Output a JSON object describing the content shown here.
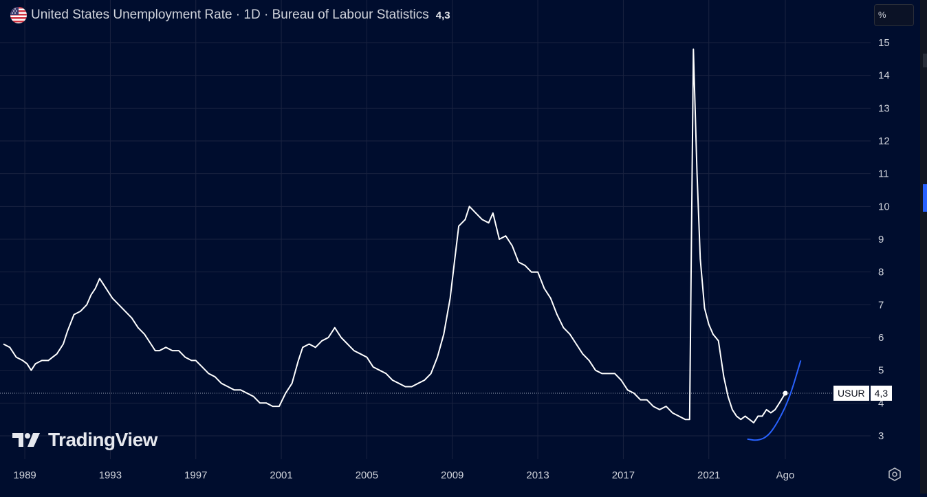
{
  "header": {
    "title": "United States Unemployment Rate · 1D · Bureau of Labour Statistics",
    "last_value": "4,3"
  },
  "toolbar": {
    "unit_button": "%"
  },
  "branding": {
    "logo_text": "TradingView"
  },
  "price_badge": {
    "symbol": "USUR",
    "value": "4,3"
  },
  "colors": {
    "background": "#000d2e",
    "line": "#ffffff",
    "projection": "#2962ff",
    "grid": "#1a2340",
    "axis_text": "#d1d4dc"
  },
  "chart_data": {
    "type": "line",
    "title": "United States Unemployment Rate · 1D · Bureau of Labour Statistics",
    "ylabel": "%",
    "ylim": [
      2.1,
      16.2
    ],
    "xlim": [
      1988.0,
      2026.5
    ],
    "y_ticks": [
      3,
      4,
      5,
      6,
      7,
      8,
      9,
      10,
      11,
      12,
      13,
      14,
      15
    ],
    "x_ticks": [
      {
        "label": "1989",
        "x": 1989.0
      },
      {
        "label": "1993",
        "x": 1993.0
      },
      {
        "label": "1997",
        "x": 1997.0
      },
      {
        "label": "2001",
        "x": 2001.0
      },
      {
        "label": "2005",
        "x": 2005.0
      },
      {
        "label": "2009",
        "x": 2009.0
      },
      {
        "label": "2013",
        "x": 2013.0
      },
      {
        "label": "2017",
        "x": 2017.0
      },
      {
        "label": "2021",
        "x": 2021.0
      },
      {
        "label": "Ago",
        "x": 2024.58
      }
    ],
    "grid": true,
    "legend": "none",
    "series": [
      {
        "name": "USUR",
        "points": [
          [
            1988.0,
            5.8
          ],
          [
            1988.3,
            5.7
          ],
          [
            1988.6,
            5.4
          ],
          [
            1988.9,
            5.3
          ],
          [
            1989.1,
            5.2
          ],
          [
            1989.3,
            5.0
          ],
          [
            1989.5,
            5.2
          ],
          [
            1989.8,
            5.3
          ],
          [
            1990.1,
            5.3
          ],
          [
            1990.3,
            5.4
          ],
          [
            1990.5,
            5.5
          ],
          [
            1990.8,
            5.8
          ],
          [
            1991.0,
            6.2
          ],
          [
            1991.3,
            6.7
          ],
          [
            1991.6,
            6.8
          ],
          [
            1991.9,
            7.0
          ],
          [
            1992.1,
            7.3
          ],
          [
            1992.3,
            7.5
          ],
          [
            1992.5,
            7.8
          ],
          [
            1992.7,
            7.6
          ],
          [
            1992.9,
            7.4
          ],
          [
            1993.1,
            7.2
          ],
          [
            1993.4,
            7.0
          ],
          [
            1993.7,
            6.8
          ],
          [
            1994.0,
            6.6
          ],
          [
            1994.3,
            6.3
          ],
          [
            1994.6,
            6.1
          ],
          [
            1994.9,
            5.8
          ],
          [
            1995.1,
            5.6
          ],
          [
            1995.3,
            5.6
          ],
          [
            1995.6,
            5.7
          ],
          [
            1995.9,
            5.6
          ],
          [
            1996.2,
            5.6
          ],
          [
            1996.5,
            5.4
          ],
          [
            1996.8,
            5.3
          ],
          [
            1997.0,
            5.3
          ],
          [
            1997.3,
            5.1
          ],
          [
            1997.6,
            4.9
          ],
          [
            1997.9,
            4.8
          ],
          [
            1998.2,
            4.6
          ],
          [
            1998.5,
            4.5
          ],
          [
            1998.8,
            4.4
          ],
          [
            1999.1,
            4.4
          ],
          [
            1999.4,
            4.3
          ],
          [
            1999.7,
            4.2
          ],
          [
            2000.0,
            4.0
          ],
          [
            2000.3,
            4.0
          ],
          [
            2000.6,
            3.9
          ],
          [
            2000.9,
            3.9
          ],
          [
            2001.2,
            4.3
          ],
          [
            2001.5,
            4.6
          ],
          [
            2001.8,
            5.3
          ],
          [
            2002.0,
            5.7
          ],
          [
            2002.3,
            5.8
          ],
          [
            2002.6,
            5.7
          ],
          [
            2002.9,
            5.9
          ],
          [
            2003.2,
            6.0
          ],
          [
            2003.5,
            6.3
          ],
          [
            2003.8,
            6.0
          ],
          [
            2004.1,
            5.8
          ],
          [
            2004.4,
            5.6
          ],
          [
            2004.7,
            5.5
          ],
          [
            2005.0,
            5.4
          ],
          [
            2005.3,
            5.1
          ],
          [
            2005.6,
            5.0
          ],
          [
            2005.9,
            4.9
          ],
          [
            2006.2,
            4.7
          ],
          [
            2006.5,
            4.6
          ],
          [
            2006.8,
            4.5
          ],
          [
            2007.1,
            4.5
          ],
          [
            2007.4,
            4.6
          ],
          [
            2007.7,
            4.7
          ],
          [
            2008.0,
            4.9
          ],
          [
            2008.3,
            5.4
          ],
          [
            2008.6,
            6.1
          ],
          [
            2008.9,
            7.2
          ],
          [
            2009.1,
            8.3
          ],
          [
            2009.3,
            9.4
          ],
          [
            2009.6,
            9.6
          ],
          [
            2009.8,
            10.0
          ],
          [
            2010.1,
            9.8
          ],
          [
            2010.4,
            9.6
          ],
          [
            2010.7,
            9.5
          ],
          [
            2010.9,
            9.8
          ],
          [
            2011.2,
            9.0
          ],
          [
            2011.5,
            9.1
          ],
          [
            2011.8,
            8.8
          ],
          [
            2012.1,
            8.3
          ],
          [
            2012.4,
            8.2
          ],
          [
            2012.7,
            8.0
          ],
          [
            2013.0,
            8.0
          ],
          [
            2013.3,
            7.5
          ],
          [
            2013.6,
            7.2
          ],
          [
            2013.9,
            6.7
          ],
          [
            2014.2,
            6.3
          ],
          [
            2014.5,
            6.1
          ],
          [
            2014.8,
            5.8
          ],
          [
            2015.1,
            5.5
          ],
          [
            2015.4,
            5.3
          ],
          [
            2015.7,
            5.0
          ],
          [
            2016.0,
            4.9
          ],
          [
            2016.3,
            4.9
          ],
          [
            2016.6,
            4.9
          ],
          [
            2016.9,
            4.7
          ],
          [
            2017.2,
            4.4
          ],
          [
            2017.5,
            4.3
          ],
          [
            2017.8,
            4.1
          ],
          [
            2018.1,
            4.1
          ],
          [
            2018.4,
            3.9
          ],
          [
            2018.7,
            3.8
          ],
          [
            2019.0,
            3.9
          ],
          [
            2019.3,
            3.7
          ],
          [
            2019.6,
            3.6
          ],
          [
            2019.9,
            3.5
          ],
          [
            2020.1,
            3.5
          ],
          [
            2020.28,
            14.8
          ],
          [
            2020.45,
            11.0
          ],
          [
            2020.6,
            8.4
          ],
          [
            2020.8,
            6.9
          ],
          [
            2021.0,
            6.4
          ],
          [
            2021.2,
            6.1
          ],
          [
            2021.45,
            5.9
          ],
          [
            2021.7,
            4.8
          ],
          [
            2021.9,
            4.2
          ],
          [
            2022.1,
            3.8
          ],
          [
            2022.3,
            3.6
          ],
          [
            2022.5,
            3.5
          ],
          [
            2022.7,
            3.6
          ],
          [
            2022.9,
            3.5
          ],
          [
            2023.1,
            3.4
          ],
          [
            2023.3,
            3.6
          ],
          [
            2023.5,
            3.6
          ],
          [
            2023.7,
            3.8
          ],
          [
            2023.9,
            3.7
          ],
          [
            2024.1,
            3.8
          ],
          [
            2024.3,
            4.0
          ],
          [
            2024.58,
            4.3
          ]
        ]
      }
    ],
    "projection_curve": [
      [
        2022.8,
        2.9
      ],
      [
        2023.3,
        2.85
      ],
      [
        2023.8,
        3.0
      ],
      [
        2024.3,
        3.5
      ],
      [
        2024.8,
        4.2
      ],
      [
        2025.3,
        5.3
      ]
    ]
  }
}
